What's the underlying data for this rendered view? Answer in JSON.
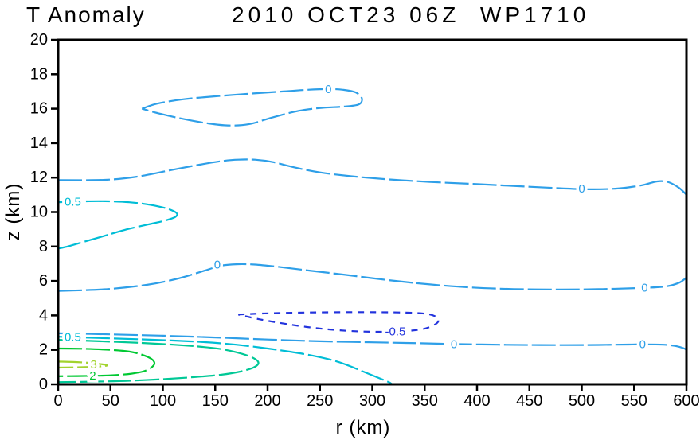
{
  "title": {
    "left": "T Anomaly",
    "right": "2010 OCT23 06Z  WP1710"
  },
  "axes": {
    "x": {
      "label": "r (km)",
      "min": 0,
      "max": 600,
      "ticks": [
        0,
        50,
        100,
        150,
        200,
        250,
        300,
        350,
        400,
        450,
        500,
        550,
        600
      ]
    },
    "y": {
      "label": "z (km)",
      "min": 0,
      "max": 20,
      "ticks": [
        0,
        2,
        4,
        6,
        8,
        10,
        12,
        14,
        16,
        18,
        20
      ]
    }
  },
  "chart_data": {
    "type": "contour",
    "title": "T Anomaly  2010 OCT23 06Z  WP1710",
    "xlabel": "r (km)",
    "ylabel": "z (km)",
    "xlim": [
      0,
      600
    ],
    "ylim": [
      0,
      20
    ],
    "grid": false,
    "levels": [
      -0.5,
      0,
      0.5,
      1,
      2,
      3
    ],
    "level_colors": {
      "-0.5": "#2233dd",
      "0": "#2e9fe8",
      "0.5": "#00bdd6",
      "1": "#00c896",
      "2": "#00c832",
      "3": "#a2d32e"
    },
    "contours": [
      {
        "level": 0,
        "color": "#2e9fe8",
        "dashed": false,
        "closed": true,
        "points": [
          [
            80,
            16.0
          ],
          [
            95,
            16.3
          ],
          [
            120,
            16.55
          ],
          [
            150,
            16.72
          ],
          [
            185,
            16.88
          ],
          [
            215,
            17.0
          ],
          [
            238,
            17.1
          ],
          [
            258,
            17.14
          ],
          [
            272,
            17.1
          ],
          [
            284,
            16.95
          ],
          [
            290,
            16.6
          ],
          [
            287,
            16.25
          ],
          [
            272,
            16.12
          ],
          [
            252,
            16.05
          ],
          [
            230,
            15.88
          ],
          [
            205,
            15.5
          ],
          [
            182,
            15.1
          ],
          [
            162,
            15.03
          ],
          [
            143,
            15.15
          ],
          [
            120,
            15.4
          ],
          [
            98,
            15.7
          ],
          [
            80,
            16.0
          ]
        ],
        "labels": [
          {
            "text": "0",
            "r": 258,
            "z": 17.12
          }
        ]
      },
      {
        "level": 0,
        "color": "#2e9fe8",
        "dashed": false,
        "closed": false,
        "points": [
          [
            0,
            11.85
          ],
          [
            45,
            11.87
          ],
          [
            75,
            12.05
          ],
          [
            105,
            12.4
          ],
          [
            135,
            12.75
          ],
          [
            158,
            12.97
          ],
          [
            172,
            13.04
          ],
          [
            188,
            13.04
          ],
          [
            205,
            12.9
          ],
          [
            225,
            12.6
          ],
          [
            250,
            12.3
          ],
          [
            280,
            12.08
          ],
          [
            315,
            11.9
          ],
          [
            355,
            11.75
          ],
          [
            400,
            11.62
          ],
          [
            450,
            11.47
          ],
          [
            500,
            11.33
          ],
          [
            532,
            11.36
          ],
          [
            557,
            11.55
          ],
          [
            572,
            11.78
          ],
          [
            583,
            11.73
          ],
          [
            593,
            11.4
          ],
          [
            600,
            11.0
          ]
        ],
        "labels": [
          {
            "text": "0",
            "r": 500,
            "z": 11.33
          }
        ]
      },
      {
        "level": 0.5,
        "color": "#00bdd6",
        "dashed": false,
        "closed": false,
        "points": [
          [
            0,
            10.57
          ],
          [
            22,
            10.62
          ],
          [
            45,
            10.63
          ],
          [
            68,
            10.57
          ],
          [
            88,
            10.42
          ],
          [
            104,
            10.2
          ],
          [
            113,
            9.95
          ],
          [
            112,
            9.72
          ],
          [
            102,
            9.5
          ],
          [
            86,
            9.28
          ],
          [
            66,
            9.0
          ],
          [
            46,
            8.65
          ],
          [
            26,
            8.3
          ],
          [
            10,
            8.02
          ],
          [
            0,
            7.88
          ]
        ],
        "labels": [
          {
            "text": "0.5",
            "r": 14,
            "z": 10.58
          }
        ]
      },
      {
        "level": 0,
        "color": "#2e9fe8",
        "dashed": false,
        "closed": false,
        "points": [
          [
            0,
            5.42
          ],
          [
            45,
            5.52
          ],
          [
            85,
            5.78
          ],
          [
            115,
            6.15
          ],
          [
            140,
            6.6
          ],
          [
            155,
            6.88
          ],
          [
            170,
            6.97
          ],
          [
            188,
            6.95
          ],
          [
            210,
            6.82
          ],
          [
            240,
            6.6
          ],
          [
            275,
            6.35
          ],
          [
            315,
            6.05
          ],
          [
            355,
            5.8
          ],
          [
            395,
            5.62
          ],
          [
            435,
            5.53
          ],
          [
            480,
            5.5
          ],
          [
            520,
            5.53
          ],
          [
            558,
            5.6
          ],
          [
            580,
            5.68
          ],
          [
            593,
            5.9
          ],
          [
            600,
            6.2
          ]
        ],
        "labels": [
          {
            "text": "0",
            "r": 152,
            "z": 6.93
          },
          {
            "text": "0",
            "r": 560,
            "z": 5.6
          }
        ]
      },
      {
        "level": -0.5,
        "color": "#2233dd",
        "dashed": true,
        "closed": true,
        "points": [
          [
            172,
            4.05
          ],
          [
            200,
            4.12
          ],
          [
            240,
            4.17
          ],
          [
            285,
            4.19
          ],
          [
            325,
            4.17
          ],
          [
            350,
            4.1
          ],
          [
            361,
            3.92
          ],
          [
            363,
            3.65
          ],
          [
            357,
            3.38
          ],
          [
            346,
            3.18
          ],
          [
            328,
            3.08
          ],
          [
            305,
            3.05
          ],
          [
            278,
            3.1
          ],
          [
            248,
            3.25
          ],
          [
            218,
            3.5
          ],
          [
            192,
            3.78
          ],
          [
            172,
            4.05
          ]
        ],
        "labels": [
          {
            "text": "-0.5",
            "r": 322,
            "z": 3.05
          }
        ]
      },
      {
        "level": 0,
        "color": "#2e9fe8",
        "dashed": false,
        "closed": false,
        "points": [
          [
            0,
            2.96
          ],
          [
            50,
            2.9
          ],
          [
            100,
            2.82
          ],
          [
            150,
            2.72
          ],
          [
            200,
            2.6
          ],
          [
            250,
            2.5
          ],
          [
            300,
            2.44
          ],
          [
            350,
            2.38
          ],
          [
            378,
            2.34
          ],
          [
            420,
            2.3
          ],
          [
            460,
            2.28
          ],
          [
            505,
            2.28
          ],
          [
            545,
            2.31
          ],
          [
            558,
            2.32
          ],
          [
            578,
            2.3
          ],
          [
            590,
            2.22
          ],
          [
            597,
            2.1
          ],
          [
            600,
            2.0
          ]
        ],
        "labels": [
          {
            "text": "0",
            "r": 378,
            "z": 2.32
          },
          {
            "text": "0",
            "r": 558,
            "z": 2.32
          }
        ]
      },
      {
        "level": 0.5,
        "color": "#00bdd6",
        "dashed": false,
        "closed": false,
        "points": [
          [
            0,
            2.76
          ],
          [
            40,
            2.69
          ],
          [
            80,
            2.61
          ],
          [
            110,
            2.54
          ],
          [
            140,
            2.45
          ],
          [
            170,
            2.3
          ],
          [
            195,
            2.12
          ],
          [
            215,
            1.95
          ],
          [
            240,
            1.7
          ],
          [
            262,
            1.4
          ],
          [
            276,
            1.12
          ],
          [
            288,
            0.82
          ],
          [
            299,
            0.55
          ],
          [
            309,
            0.3
          ],
          [
            316,
            0.12
          ],
          [
            319,
            0.0
          ]
        ],
        "labels": [
          {
            "text": "0.5",
            "r": 14,
            "z": 2.72
          }
        ]
      },
      {
        "level": 1,
        "color": "#00c896",
        "dashed": false,
        "closed": false,
        "points": [
          [
            0,
            2.58
          ],
          [
            40,
            2.5
          ],
          [
            80,
            2.4
          ],
          [
            110,
            2.3
          ],
          [
            135,
            2.19
          ],
          [
            155,
            2.05
          ],
          [
            170,
            1.86
          ],
          [
            183,
            1.62
          ],
          [
            190,
            1.38
          ],
          [
            191,
            1.18
          ],
          [
            186,
            0.96
          ],
          [
            174,
            0.74
          ],
          [
            156,
            0.56
          ],
          [
            130,
            0.42
          ],
          [
            100,
            0.3
          ],
          [
            68,
            0.21
          ],
          [
            38,
            0.16
          ],
          [
            0,
            0.13
          ]
        ],
        "labels": []
      },
      {
        "level": 2,
        "color": "#00c832",
        "dashed": false,
        "closed": false,
        "points": [
          [
            0,
            2.08
          ],
          [
            25,
            2.06
          ],
          [
            50,
            2.0
          ],
          [
            68,
            1.9
          ],
          [
            80,
            1.72
          ],
          [
            89,
            1.48
          ],
          [
            92,
            1.22
          ],
          [
            89,
            0.97
          ],
          [
            82,
            0.76
          ],
          [
            70,
            0.62
          ],
          [
            55,
            0.54
          ],
          [
            38,
            0.5
          ],
          [
            18,
            0.48
          ],
          [
            0,
            0.47
          ]
        ],
        "labels": [
          {
            "text": "2",
            "r": 33,
            "z": 0.48
          }
        ]
      },
      {
        "level": 3,
        "color": "#a2d32e",
        "dashed": false,
        "closed": false,
        "points": [
          [
            0,
            1.32
          ],
          [
            14,
            1.3
          ],
          [
            28,
            1.25
          ],
          [
            40,
            1.18
          ],
          [
            47,
            1.1
          ],
          [
            40,
            1.04
          ],
          [
            25,
            1.0
          ],
          [
            0,
            0.97
          ]
        ],
        "labels": [
          {
            "text": "3",
            "r": 34,
            "z": 1.13
          }
        ]
      }
    ]
  }
}
